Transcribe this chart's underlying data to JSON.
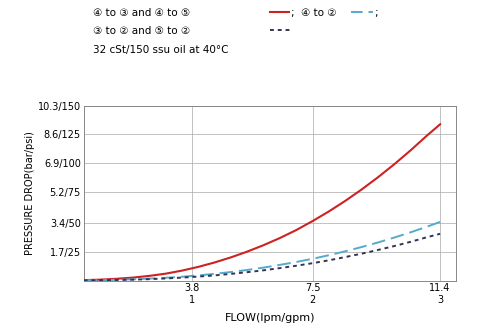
{
  "title_line3": "32 cSt/150 ssu oil at 40°C",
  "ylabel": "PRESSURE DROP(bar/psi)",
  "xlabel": "FLOW(lpm/gpm)",
  "ytick_labels": [
    "1.7/25",
    "3.4/50",
    "5.2/75",
    "6.9/100",
    "8.6/125",
    "10.3/150"
  ],
  "ytick_values": [
    1.7,
    3.4,
    5.2,
    6.9,
    8.6,
    10.3
  ],
  "xtick_labels_top": [
    "3.8",
    "7.5",
    "11.4"
  ],
  "xtick_labels_bottom": [
    "1",
    "2",
    "3"
  ],
  "xtick_values": [
    3.8,
    7.5,
    11.4
  ],
  "xmin": 0.5,
  "xmax": 11.9,
  "ymin": 0.0,
  "ymax": 10.3,
  "curve1_color": "#cc2222",
  "curve2_color": "#55aacc",
  "curve3_color": "#333355",
  "legend_text1a": "④ to ③ and ④ to ⑤",
  "legend_text1b": "④ to ②",
  "legend_text2": "③ to ② and ⑤ to ②",
  "curve1_x": [
    0.5,
    1.0,
    1.5,
    2.0,
    2.5,
    3.0,
    3.5,
    4.0,
    4.5,
    5.0,
    5.5,
    6.0,
    6.5,
    7.0,
    7.5,
    8.0,
    8.5,
    9.0,
    9.5,
    10.0,
    10.5,
    11.0,
    11.4
  ],
  "curve1_y": [
    0.02,
    0.05,
    0.1,
    0.17,
    0.27,
    0.4,
    0.58,
    0.8,
    1.06,
    1.36,
    1.7,
    2.08,
    2.5,
    2.97,
    3.5,
    4.07,
    4.69,
    5.36,
    6.08,
    6.85,
    7.67,
    8.54,
    9.2
  ],
  "curve2_x": [
    0.5,
    1.0,
    1.5,
    2.0,
    2.5,
    3.0,
    3.5,
    4.0,
    4.5,
    5.0,
    5.5,
    6.0,
    6.5,
    7.0,
    7.5,
    8.0,
    8.5,
    9.0,
    9.5,
    10.0,
    10.5,
    11.0,
    11.4
  ],
  "curve2_y": [
    0.01,
    0.02,
    0.04,
    0.07,
    0.11,
    0.16,
    0.22,
    0.3,
    0.39,
    0.5,
    0.62,
    0.76,
    0.92,
    1.09,
    1.28,
    1.49,
    1.72,
    1.97,
    2.24,
    2.53,
    2.84,
    3.17,
    3.45
  ],
  "curve3_x": [
    0.5,
    1.0,
    1.5,
    2.0,
    2.5,
    3.0,
    3.5,
    4.0,
    4.5,
    5.0,
    5.5,
    6.0,
    6.5,
    7.0,
    7.5,
    8.0,
    8.5,
    9.0,
    9.5,
    10.0,
    10.5,
    11.0,
    11.4
  ],
  "curve3_y": [
    0.01,
    0.02,
    0.03,
    0.05,
    0.08,
    0.12,
    0.17,
    0.23,
    0.3,
    0.39,
    0.49,
    0.6,
    0.73,
    0.87,
    1.02,
    1.19,
    1.38,
    1.58,
    1.8,
    2.03,
    2.28,
    2.55,
    2.75
  ]
}
